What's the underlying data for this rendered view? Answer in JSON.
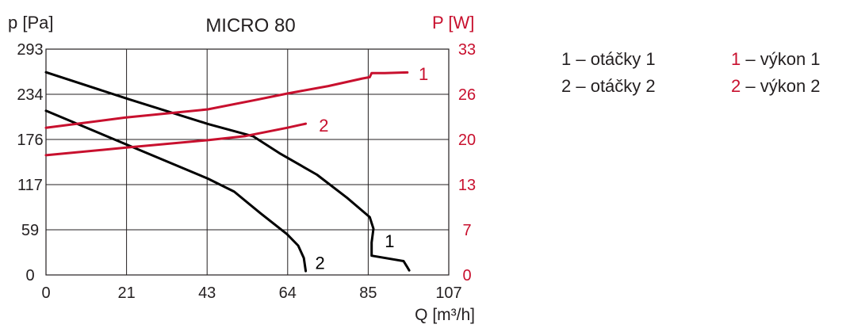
{
  "chart_data": {
    "type": "line",
    "title": "MICRO 80",
    "ylabel_left": "p [Pa]",
    "ylabel_right": "P [W]",
    "xlabel": "Q [m³/h]",
    "x_ticks": [
      "0",
      "21",
      "43",
      "64",
      "85",
      "107"
    ],
    "y_left_ticks": [
      "0",
      "59",
      "117",
      "176",
      "234",
      "293"
    ],
    "y_right_ticks": [
      "0",
      "7",
      "13",
      "20",
      "26",
      "33"
    ],
    "xlim": [
      0,
      107
    ],
    "ylim_left": [
      0,
      293
    ],
    "ylim_right": [
      0,
      33
    ],
    "grid": true,
    "colors": {
      "pressure": "#000000",
      "power": "#c8102e",
      "axis_left": "#231f20",
      "axis_right": "#c8102e"
    },
    "series": [
      {
        "name": "1",
        "kind": "pressure",
        "axis": "left",
        "label": "1",
        "points": [
          [
            0,
            263
          ],
          [
            22,
            228
          ],
          [
            43,
            196
          ],
          [
            55,
            180
          ],
          [
            62,
            158
          ],
          [
            72,
            130
          ],
          [
            80,
            100
          ],
          [
            86,
            75
          ],
          [
            87,
            60
          ],
          [
            86.5,
            42
          ],
          [
            86.5,
            25
          ],
          [
            95,
            18
          ],
          [
            96,
            10
          ],
          [
            96.5,
            6
          ]
        ]
      },
      {
        "name": "2",
        "kind": "pressure",
        "axis": "left",
        "label": "2",
        "points": [
          [
            0,
            213
          ],
          [
            21,
            170
          ],
          [
            43,
            125
          ],
          [
            50,
            108
          ],
          [
            57,
            80
          ],
          [
            64,
            53
          ],
          [
            67,
            38
          ],
          [
            68.5,
            22
          ],
          [
            69,
            5
          ]
        ]
      },
      {
        "name": "1",
        "kind": "power",
        "axis": "right",
        "label": "1",
        "points": [
          [
            0,
            21.5
          ],
          [
            21,
            23
          ],
          [
            43,
            24.2
          ],
          [
            55,
            25.5
          ],
          [
            64,
            26.5
          ],
          [
            75,
            27.6
          ],
          [
            84,
            28.7
          ],
          [
            86,
            28.9
          ],
          [
            86.5,
            29.5
          ],
          [
            90,
            29.5
          ],
          [
            96,
            29.6
          ]
        ]
      },
      {
        "name": "2",
        "kind": "power",
        "axis": "right",
        "label": "2",
        "points": [
          [
            0,
            17.5
          ],
          [
            21,
            18.6
          ],
          [
            43,
            19.7
          ],
          [
            53,
            20.3
          ],
          [
            64,
            21.5
          ],
          [
            69,
            22.1
          ]
        ]
      }
    ],
    "labels": [
      {
        "text": "1",
        "x": 99,
        "y": 29.4,
        "axis": "right",
        "color": "power"
      },
      {
        "text": "2",
        "x": 72.5,
        "y": 21.9,
        "axis": "right",
        "color": "power"
      },
      {
        "text": "1",
        "x": 90,
        "y": 44,
        "axis": "left",
        "color": "pressure"
      },
      {
        "text": "2",
        "x": 71.5,
        "y": 16,
        "axis": "left",
        "color": "pressure"
      }
    ]
  },
  "legend": {
    "items": [
      {
        "num": "1",
        "text": " – otáčky 1",
        "color": "pressure"
      },
      {
        "num": "2",
        "text": " – otáčky 2",
        "color": "pressure"
      },
      {
        "num": "1",
        "text": " – výkon 1",
        "color": "power"
      },
      {
        "num": "2",
        "text": " – výkon 2",
        "color": "power"
      }
    ]
  }
}
